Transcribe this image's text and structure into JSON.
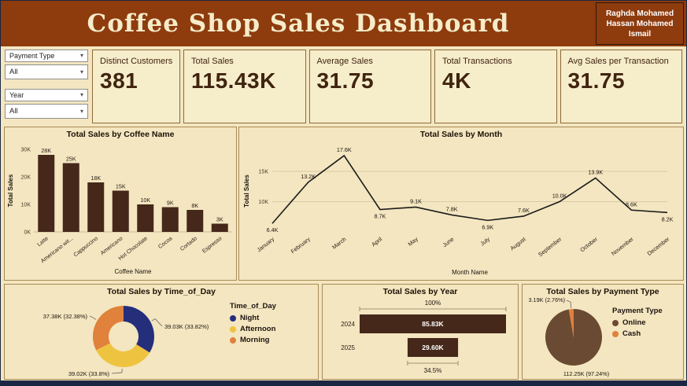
{
  "header": {
    "title": "Coffee Shop Sales Dashboard",
    "author": "Raghda Mohamed Hassan Mohamed Ismail"
  },
  "filters": {
    "payment_type": {
      "label": "Payment Type",
      "value": "All"
    },
    "year": {
      "label": "Year",
      "value": "All"
    }
  },
  "kpis": [
    {
      "label": "Distinct Customers",
      "value": "381"
    },
    {
      "label": "Total Sales",
      "value": "115.43K"
    },
    {
      "label": "Average Sales",
      "value": "31.75"
    },
    {
      "label": "Total Transactions",
      "value": "4K"
    },
    {
      "label": "Avg Sales per Transaction",
      "value": "31.75"
    }
  ],
  "chart_data": [
    {
      "type": "bar",
      "title": "Total Sales by Coffee Name",
      "xlabel": "Coffee Name",
      "ylabel": "Total Sales",
      "categories": [
        "Latte",
        "Americano wit...",
        "Cappuccino",
        "Americano",
        "Hot Chocolate",
        "Cocoa",
        "Cortado",
        "Espresso"
      ],
      "values": [
        28000,
        25000,
        18000,
        15000,
        10000,
        9000,
        8000,
        3000
      ],
      "data_labels": [
        "28K",
        "25K",
        "18K",
        "15K",
        "10K",
        "9K",
        "8K",
        "3K"
      ],
      "ylim": [
        0,
        30000
      ],
      "yticks": [
        "0K",
        "10K",
        "20K",
        "30K"
      ],
      "ytick_values": [
        0,
        10000,
        20000,
        30000
      ],
      "bar_color": "#46281b"
    },
    {
      "type": "line",
      "title": "Total Sales by Month",
      "xlabel": "Month Name",
      "ylabel": "Total Sales",
      "categories": [
        "January",
        "February",
        "March",
        "April",
        "May",
        "June",
        "July",
        "August",
        "September",
        "October",
        "November",
        "December"
      ],
      "values": [
        6400,
        13200,
        17600,
        8700,
        9100,
        7800,
        6900,
        7600,
        10000,
        13900,
        8600,
        8200
      ],
      "data_labels": [
        "6.4K",
        "13.2K",
        "17.6K",
        "8.7K",
        "9.1K",
        "7.8K",
        "6.9K",
        "7.6K",
        "10.0K",
        "13.9K",
        "8.6K",
        "8.2K"
      ],
      "yticks": [
        "10K",
        "15K"
      ],
      "ytick_values": [
        10000,
        15000
      ],
      "ylim": [
        5000,
        18500
      ],
      "line_color": "#1b1b1b"
    },
    {
      "type": "donut",
      "title": "Total Sales by Time_of_Day",
      "legend_title": "Time_of_Day",
      "slices": [
        {
          "name": "Night",
          "value": 39030,
          "label": "39.03K (33.82%)",
          "color": "#252e7b"
        },
        {
          "name": "Afternoon",
          "value": 39020,
          "label": "39.02K (33.8%)",
          "color": "#eec33f"
        },
        {
          "name": "Morning",
          "value": 37380,
          "label": "37.38K (32.38%)",
          "color": "#e0813c"
        }
      ]
    },
    {
      "type": "funnel",
      "title": "Total Sales by Year",
      "categories": [
        "2024",
        "2025"
      ],
      "values": [
        85830,
        29600
      ],
      "data_labels": [
        "85.83K",
        "29.60K"
      ],
      "top_label": "100%",
      "bottom_label": "34.5%",
      "bar_color": "#46281b"
    },
    {
      "type": "pie",
      "title": "Total Sales by Payment Type",
      "legend_title": "Payment Type",
      "slices": [
        {
          "name": "Online",
          "value": 112250,
          "label": "112.25K (97.24%)",
          "color": "#6b4a33"
        },
        {
          "name": "Cash",
          "value": 3190,
          "label": "3.19K (2.76%)",
          "color": "#e0813c"
        }
      ]
    }
  ]
}
